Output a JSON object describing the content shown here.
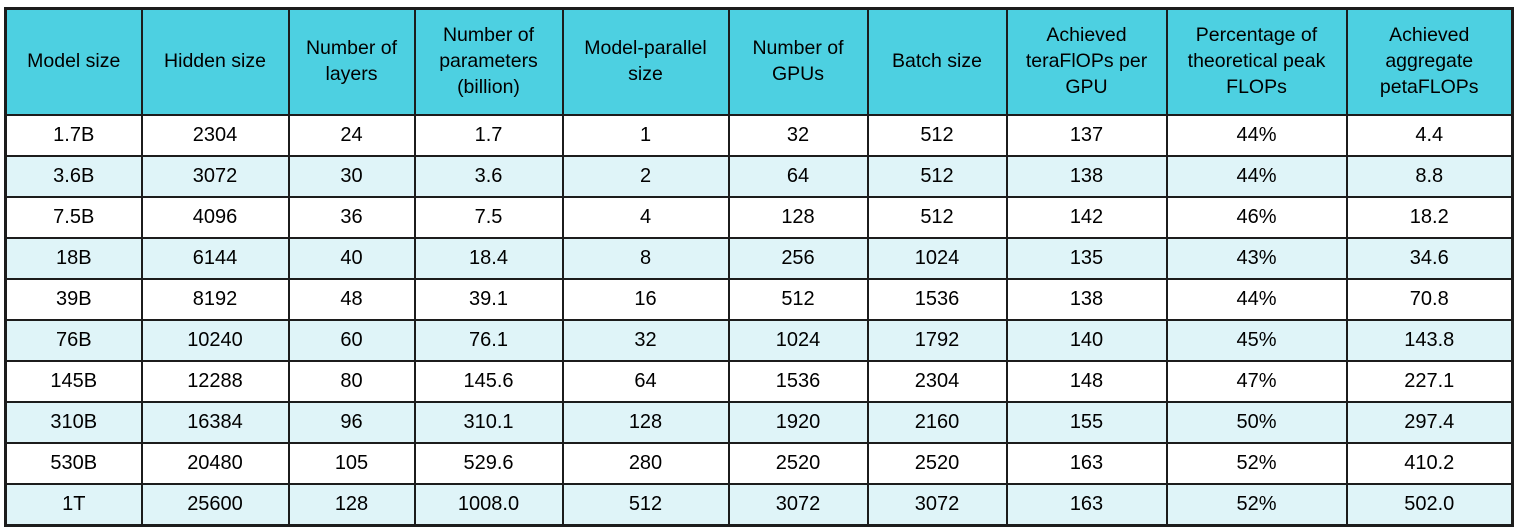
{
  "colors": {
    "header_bg": "#4dd0e1",
    "stripe_bg": "#dff4f8",
    "border": "#1c1c1c",
    "text": "#000000"
  },
  "chart_data": {
    "type": "table",
    "columns": [
      "Model size",
      "Hidden size",
      "Number of layers",
      "Number of parameters (billion)",
      "Model-parallel size",
      "Number of GPUs",
      "Batch size",
      "Achieved teraFlOPs per GPU",
      "Percentage of theoretical peak FLOPs",
      "Achieved aggregate petaFLOPs"
    ],
    "rows": [
      [
        "1.7B",
        "2304",
        "24",
        "1.7",
        "1",
        "32",
        "512",
        "137",
        "44%",
        "4.4"
      ],
      [
        "3.6B",
        "3072",
        "30",
        "3.6",
        "2",
        "64",
        "512",
        "138",
        "44%",
        "8.8"
      ],
      [
        "7.5B",
        "4096",
        "36",
        "7.5",
        "4",
        "128",
        "512",
        "142",
        "46%",
        "18.2"
      ],
      [
        "18B",
        "6144",
        "40",
        "18.4",
        "8",
        "256",
        "1024",
        "135",
        "43%",
        "34.6"
      ],
      [
        "39B",
        "8192",
        "48",
        "39.1",
        "16",
        "512",
        "1536",
        "138",
        "44%",
        "70.8"
      ],
      [
        "76B",
        "10240",
        "60",
        "76.1",
        "32",
        "1024",
        "1792",
        "140",
        "45%",
        "143.8"
      ],
      [
        "145B",
        "12288",
        "80",
        "145.6",
        "64",
        "1536",
        "2304",
        "148",
        "47%",
        "227.1"
      ],
      [
        "310B",
        "16384",
        "96",
        "310.1",
        "128",
        "1920",
        "2160",
        "155",
        "50%",
        "297.4"
      ],
      [
        "530B",
        "20480",
        "105",
        "529.6",
        "280",
        "2520",
        "2520",
        "163",
        "52%",
        "410.2"
      ],
      [
        "1T",
        "25600",
        "128",
        "1008.0",
        "512",
        "3072",
        "3072",
        "163",
        "52%",
        "502.0"
      ]
    ],
    "layout": {
      "header_alignment": "center",
      "cell_alignment": "center",
      "striping": "even data rows shaded pale cyan",
      "grid": "full black gridlines"
    }
  }
}
